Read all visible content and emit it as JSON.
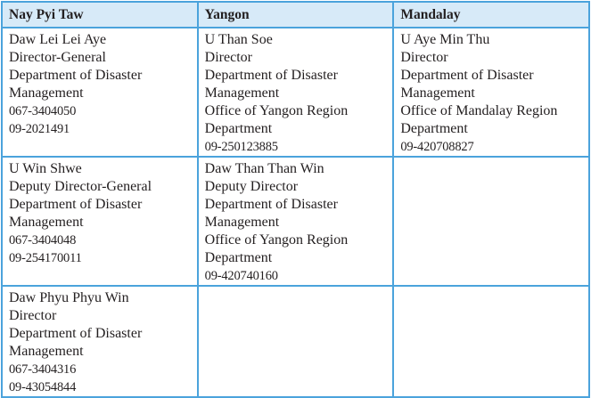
{
  "table": {
    "headers": [
      "Nay Pyi Taw",
      "Yangon",
      "Mandalay"
    ],
    "rows": [
      [
        {
          "lines": [
            "Daw Lei Lei Aye",
            "Director-General",
            "Department of Disaster",
            "Management"
          ],
          "phones": [
            "067-3404050",
            "09-2021491"
          ]
        },
        {
          "lines": [
            "U Than Soe",
            "Director",
            "Department of Disaster",
            "Management",
            "Office of Yangon Region",
            "Department"
          ],
          "phones": [
            "09-250123885"
          ]
        },
        {
          "lines": [
            "U Aye Min Thu",
            "Director",
            "Department of Disaster",
            "Management",
            "Office of Mandalay Region",
            "Department"
          ],
          "phones": [
            "09-420708827"
          ]
        }
      ],
      [
        {
          "lines": [
            "U Win Shwe",
            "Deputy Director-General",
            "Department of Disaster",
            "Management"
          ],
          "phones": [
            "067-3404048",
            "09-254170011"
          ]
        },
        {
          "lines": [
            "Daw Than Than Win",
            "Deputy Director",
            "Department of Disaster",
            "Management",
            "Office of Yangon Region",
            "Department"
          ],
          "phones": [
            "09-420740160"
          ]
        },
        {
          "lines": [],
          "phones": []
        }
      ],
      [
        {
          "lines": [
            "Daw Phyu Phyu Win",
            "Director",
            "Department of Disaster",
            "Management"
          ],
          "phones": [
            "067-3404316",
            "09-43054844"
          ]
        },
        {
          "lines": [],
          "phones": []
        },
        {
          "lines": [],
          "phones": []
        }
      ]
    ],
    "colors": {
      "border": "#4ba3dc",
      "header_bg": "#d7eaf8"
    }
  }
}
